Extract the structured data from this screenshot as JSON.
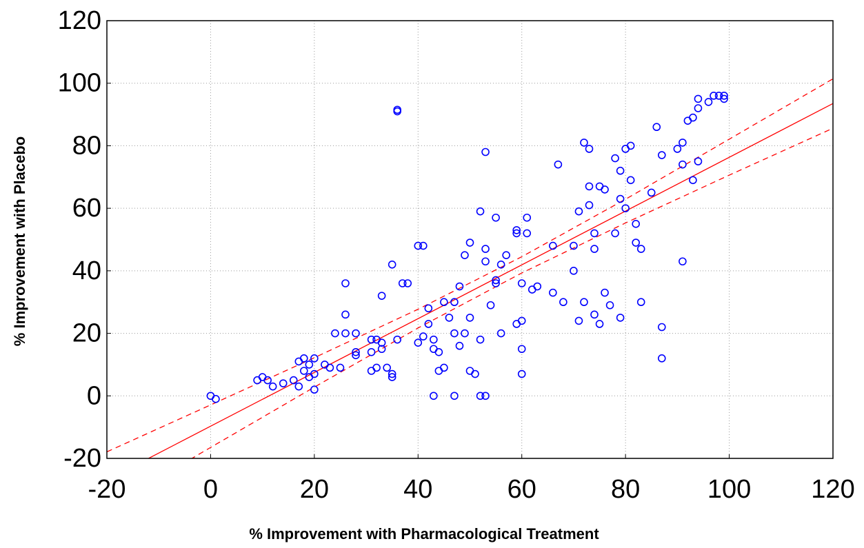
{
  "chart_data": {
    "type": "scatter",
    "x_label": "% Improvement with Pharmacological Treatment",
    "y_label": "% Improvement with Placebo",
    "xlim": [
      -20,
      120
    ],
    "ylim": [
      -20,
      120
    ],
    "xticks": [
      -20,
      0,
      20,
      40,
      60,
      80,
      100,
      120
    ],
    "yticks": [
      -20,
      0,
      20,
      40,
      60,
      80,
      100,
      120
    ],
    "grid": true,
    "series": [
      {
        "color": "#0000ff",
        "x": [
          0,
          1,
          9,
          10,
          11,
          12,
          14,
          16,
          17,
          17,
          18,
          18,
          19,
          19,
          20,
          20,
          20,
          22,
          23,
          24,
          25,
          26,
          26,
          26,
          28,
          28,
          28,
          31,
          31,
          31,
          32,
          32,
          33,
          33,
          33,
          34,
          35,
          35,
          35,
          36,
          37,
          38,
          36,
          36,
          40,
          41,
          40,
          41,
          42,
          42,
          43,
          43,
          43,
          44,
          44,
          45,
          45,
          46,
          47,
          47,
          47,
          48,
          48,
          49,
          49,
          50,
          50,
          50,
          51,
          52,
          52,
          52,
          53,
          53,
          53,
          53,
          54,
          55,
          55,
          55,
          56,
          56,
          57,
          59,
          59,
          59,
          60,
          60,
          60,
          60,
          61,
          61,
          62,
          63,
          66,
          66,
          67,
          68,
          70,
          70,
          71,
          71,
          72,
          72,
          73,
          73,
          73,
          74,
          74,
          74,
          75,
          75,
          76,
          76,
          77,
          78,
          78,
          79,
          79,
          79,
          80,
          80,
          81,
          81,
          82,
          82,
          83,
          83,
          85,
          86,
          87,
          87,
          87,
          90,
          91,
          91,
          91,
          92,
          93,
          93,
          94,
          94,
          94,
          96,
          97,
          98,
          99,
          99
        ],
        "values": [
          0,
          -1,
          5,
          6,
          5,
          3,
          4,
          5,
          3,
          11,
          8,
          12,
          6,
          10,
          12,
          7,
          2,
          10,
          9,
          20,
          9,
          36,
          26,
          20,
          20,
          14,
          13,
          18,
          14,
          8,
          9,
          18,
          17,
          15,
          32,
          9,
          7,
          6,
          42,
          18,
          36,
          36,
          91,
          91.5,
          48,
          48,
          17,
          19,
          28,
          23,
          18,
          15,
          0,
          8,
          14,
          30,
          9,
          25,
          0,
          30,
          20,
          35,
          16,
          20,
          45,
          49,
          8,
          25,
          7,
          18,
          59,
          0,
          0,
          47,
          43,
          78,
          29,
          36,
          37,
          57,
          42,
          20,
          45,
          52,
          53,
          23,
          36,
          24,
          15,
          7,
          57,
          52,
          34,
          35,
          33,
          48,
          74,
          30,
          40,
          48,
          59,
          24,
          81,
          30,
          79,
          61,
          67,
          52,
          47,
          26,
          23,
          67,
          66,
          33,
          29,
          76,
          52,
          63,
          72,
          25,
          79,
          60,
          69,
          80,
          55,
          49,
          47,
          30,
          65,
          86,
          77,
          22,
          12,
          79,
          81,
          74,
          43,
          88,
          89,
          69,
          75,
          92,
          95,
          94,
          96,
          96,
          95,
          96
        ]
      }
    ],
    "fit": {
      "color": "#ff0000",
      "x": [
        -20,
        120
      ],
      "values": [
        -26.9,
        93.5
      ]
    },
    "confidence_band": {
      "color": "#ff0000",
      "x": [
        -20,
        0,
        20,
        40,
        60,
        80,
        100,
        120
      ],
      "upper": [
        -17.9,
        -2.9,
        12.2,
        27.7,
        44.5,
        62.9,
        82.1,
        101.4
      ],
      "lower": [
        -35.9,
        -16.5,
        2.8,
        21.7,
        39.3,
        55.3,
        70.6,
        85.6
      ]
    }
  }
}
